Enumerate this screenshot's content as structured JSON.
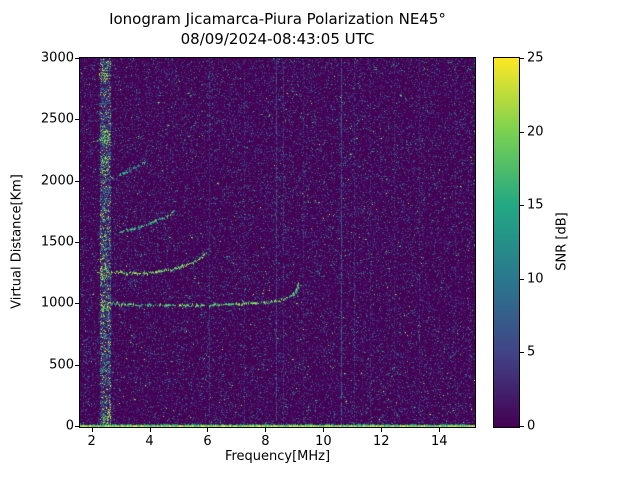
{
  "chart_data": {
    "type": "heatmap",
    "title": "Ionogram Jicamarca-Piura Polarization NE45°",
    "subtitle": "08/09/2024-08:43:05 UTC",
    "xlabel": "Frequency[MHz]",
    "ylabel": "Virtual Distance[Km]",
    "xlim": [
      1.6,
      15.2
    ],
    "ylim": [
      0,
      3000
    ],
    "xticks": [
      2,
      4,
      6,
      8,
      10,
      12,
      14
    ],
    "yticks": [
      0,
      500,
      1000,
      1500,
      2000,
      2500,
      3000
    ],
    "grid": false,
    "colorbar": {
      "label": "SNR [dB]",
      "min": 0,
      "max": 25,
      "ticks": [
        0,
        5,
        10,
        15,
        20,
        25
      ],
      "colormap": "viridis"
    },
    "colormap_stops": [
      [
        0,
        "#440154"
      ],
      [
        0.2,
        "#414487"
      ],
      [
        0.4,
        "#2a788e"
      ],
      [
        0.6,
        "#22a884"
      ],
      [
        0.8,
        "#7ad151"
      ],
      [
        1,
        "#fde725"
      ]
    ],
    "noise": {
      "seed": 42,
      "fill_prob": 0.32,
      "mean_snr": 3.2,
      "speckle_count": 150,
      "speckle_snr": [
        10,
        24
      ]
    },
    "interference_bands": [
      {
        "freq_center": 2.45,
        "freq_width": 0.34,
        "fill_prob": 0.8,
        "mean_snr": 8,
        "hotspots": [
          {
            "freq": 2.45,
            "km": 1000
          },
          {
            "freq": 2.4,
            "km": 1260
          },
          {
            "freq": 2.5,
            "km": 2360
          },
          {
            "freq": 2.4,
            "km": 2860
          },
          {
            "freq": 2.45,
            "km": 2120
          },
          {
            "freq": 2.5,
            "km": 90
          }
        ]
      }
    ],
    "vertical_lines": [
      {
        "freq": 6.05,
        "snr": 5,
        "prob": 0.5
      },
      {
        "freq": 7.25,
        "snr": 4,
        "prob": 0.4
      },
      {
        "freq": 8.35,
        "snr": 6,
        "prob": 0.7
      },
      {
        "freq": 8.6,
        "snr": 5,
        "prob": 0.5
      },
      {
        "freq": 9.3,
        "snr": 4,
        "prob": 0.45
      },
      {
        "freq": 10.6,
        "snr": 7,
        "prob": 0.85
      },
      {
        "freq": 11.05,
        "snr": 5,
        "prob": 0.5
      },
      {
        "freq": 11.6,
        "snr": 4,
        "prob": 0.4
      },
      {
        "freq": 12.45,
        "snr": 4,
        "prob": 0.35
      },
      {
        "freq": 13.3,
        "snr": 4,
        "prob": 0.4
      },
      {
        "freq": 14.55,
        "snr": 4,
        "prob": 0.35
      }
    ],
    "traces": [
      {
        "name": "f-region-echo",
        "snr_range": [
          14,
          25
        ],
        "points": [
          [
            2.55,
            1010
          ],
          [
            3.0,
            995
          ],
          [
            3.6,
            987
          ],
          [
            4.6,
            984
          ],
          [
            5.6,
            986
          ],
          [
            6.6,
            993
          ],
          [
            7.6,
            1003
          ],
          [
            8.2,
            1015
          ],
          [
            8.6,
            1035
          ],
          [
            8.9,
            1068
          ],
          [
            9.05,
            1115
          ],
          [
            9.12,
            1165
          ]
        ]
      },
      {
        "name": "f-region-cusp-return",
        "snr_range": [
          13,
          20
        ],
        "points": [
          [
            9.14,
            1155
          ],
          [
            9.06,
            1095
          ],
          [
            8.96,
            1062
          ]
        ]
      },
      {
        "name": "second-multiple-echo",
        "snr_range": [
          16,
          25
        ],
        "points": [
          [
            2.55,
            1258
          ],
          [
            3.2,
            1250
          ],
          [
            3.8,
            1249
          ],
          [
            4.3,
            1260
          ],
          [
            4.8,
            1283
          ],
          [
            5.3,
            1318
          ],
          [
            5.7,
            1362
          ],
          [
            5.95,
            1412
          ]
        ]
      },
      {
        "name": "third-multiple-echo",
        "snr_range": [
          12,
          22
        ],
        "points": [
          [
            2.95,
            1582
          ],
          [
            3.4,
            1606
          ],
          [
            3.8,
            1636
          ],
          [
            4.2,
            1674
          ],
          [
            4.6,
            1716
          ],
          [
            4.85,
            1750
          ]
        ]
      },
      {
        "name": "fourth-multiple-echo",
        "snr_range": [
          10,
          20
        ],
        "points": [
          [
            2.95,
            2050
          ],
          [
            3.3,
            2085
          ],
          [
            3.6,
            2125
          ],
          [
            3.85,
            2160
          ]
        ]
      },
      {
        "name": "fifth-multiple-echo",
        "snr_range": [
          12,
          22
        ],
        "points": [
          [
            2.2,
            2330
          ],
          [
            2.55,
            2368
          ]
        ]
      }
    ],
    "ground_line": {
      "km": 0,
      "snr_range": [
        17,
        25
      ]
    }
  }
}
